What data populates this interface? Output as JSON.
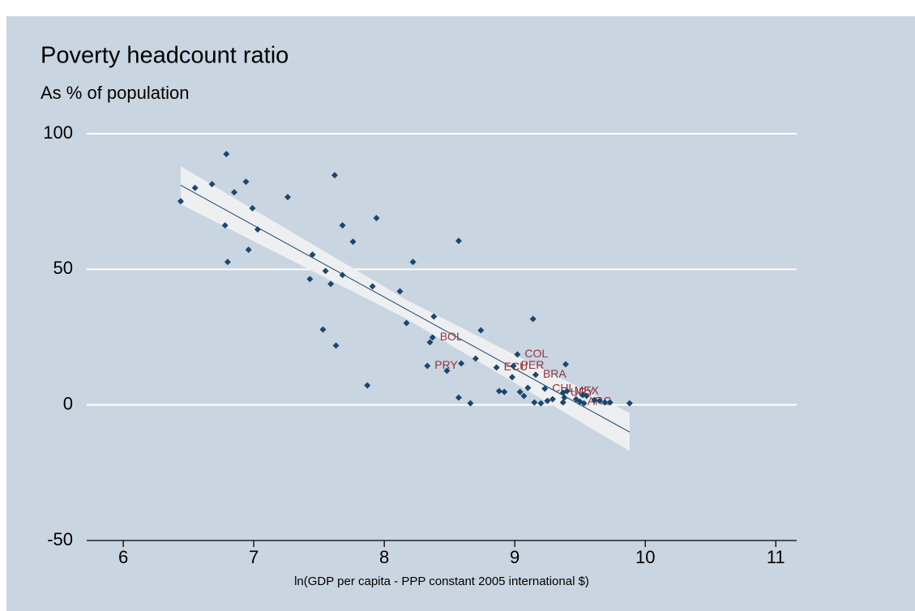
{
  "chart_data": {
    "type": "scatter",
    "title": "Poverty headcount ratio",
    "subtitle": "As % of population",
    "x_label": "ln(GDP per capita - PPP constant 2005 international $)",
    "xlim": [
      5.72,
      11.16
    ],
    "xticks": [
      6,
      7,
      8,
      9,
      10,
      11
    ],
    "ylim": [
      -50,
      100
    ],
    "yticks": [
      -50,
      0,
      50,
      100
    ],
    "grid": true,
    "series": [
      {
        "color": "#1a476f",
        "label_color": "#90353b",
        "x": [
          6.44,
          6.55,
          6.68,
          6.79,
          6.78,
          6.8,
          6.85,
          6.94,
          6.96,
          6.99,
          7.03,
          7.26,
          7.45,
          7.43,
          7.53,
          7.55,
          7.59,
          7.62,
          7.63,
          7.68,
          7.68,
          7.76,
          7.87,
          7.91,
          7.94,
          8.12,
          8.17,
          8.22,
          8.33,
          8.35,
          8.38,
          8.37,
          8.48,
          8.57,
          8.57,
          8.59,
          8.66,
          8.7,
          8.74,
          8.86,
          8.88,
          8.92,
          8.98,
          8.99,
          9.02,
          9.04,
          9.07,
          9.1,
          9.14,
          9.15,
          9.16,
          9.2,
          9.23,
          9.25,
          9.29,
          9.37,
          9.37,
          9.39,
          9.38,
          9.4,
          9.47,
          9.5,
          9.52,
          9.53,
          9.55,
          9.61,
          9.65,
          9.69,
          9.73,
          9.88
        ],
        "values": [
          75.1,
          80,
          81.4,
          92.5,
          66.2,
          52.7,
          78.4,
          82.3,
          57.2,
          72.5,
          64.7,
          76.6,
          55.4,
          46.4,
          27.8,
          49.4,
          44.6,
          84.7,
          21.9,
          47.9,
          66.2,
          60.2,
          7.2,
          43.7,
          68.9,
          41.9,
          30.2,
          52.7,
          14.4,
          23.1,
          32.6,
          24.9,
          12.6,
          60.5,
          2.7,
          15.3,
          0.6,
          17.1,
          27.5,
          13.8,
          5.1,
          4.8,
          10.2,
          14.4,
          18.6,
          4.8,
          3.3,
          6.3,
          31.7,
          0.9,
          11.1,
          0.6,
          6.0,
          1.5,
          2.1,
          0.9,
          4.5,
          15.0,
          2.7,
          5.1,
          2.1,
          1.2,
          3.6,
          0.6,
          3.3,
          1.8,
          1.5,
          0.9,
          0.9,
          0.6
        ],
        "labels": [
          null,
          null,
          null,
          null,
          null,
          null,
          null,
          null,
          null,
          null,
          null,
          null,
          null,
          null,
          null,
          null,
          null,
          null,
          null,
          null,
          null,
          null,
          null,
          null,
          null,
          null,
          null,
          null,
          "PRY",
          null,
          null,
          "BOL",
          null,
          null,
          null,
          null,
          null,
          null,
          null,
          "ECU",
          null,
          null,
          null,
          "PER",
          "COL",
          null,
          null,
          null,
          null,
          null,
          "BRA",
          null,
          "CHL",
          null,
          null,
          null,
          "URY",
          null,
          null,
          "MEX",
          null,
          "ARG",
          null,
          null,
          null,
          null,
          null,
          null,
          null,
          null
        ]
      }
    ],
    "fit": {
      "color": "#1a476f",
      "band_color": "#eeeff1",
      "x": [
        6.44,
        8.16,
        9.88
      ],
      "values": [
        81,
        35.5,
        -10
      ],
      "upper": [
        88,
        39,
        -3
      ],
      "lower": [
        74,
        32,
        -17
      ]
    }
  }
}
